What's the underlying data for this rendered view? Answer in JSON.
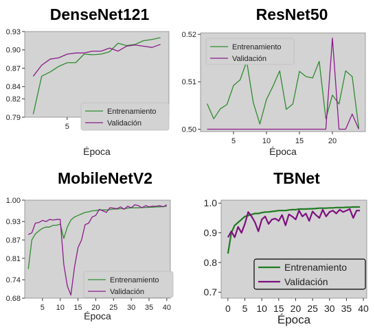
{
  "chart_data": [
    {
      "type": "line",
      "title": "DenseNet121",
      "xlabel": "Época",
      "ylabel": "",
      "xlim": [
        0,
        17
      ],
      "ylim": [
        0.79,
        0.93
      ],
      "xticks": [
        5,
        10,
        15
      ],
      "yticks": [
        0.79,
        0.82,
        0.84,
        0.87,
        0.9,
        0.93
      ],
      "ytick_labels": [
        "0.79",
        "0.82",
        "0.84",
        "0.87",
        "0.90",
        "0.93"
      ],
      "grid": false,
      "legend": "bottom-right",
      "series": [
        {
          "name": "Entrenamiento",
          "color": "#2e8b2e",
          "x": [
            1,
            2,
            3,
            4,
            5,
            6,
            7,
            8,
            9,
            10,
            11,
            12,
            13,
            14,
            15,
            16
          ],
          "y": [
            0.795,
            0.857,
            0.864,
            0.873,
            0.879,
            0.879,
            0.893,
            0.892,
            0.893,
            0.897,
            0.911,
            0.907,
            0.909,
            0.915,
            0.917,
            0.92
          ]
        },
        {
          "name": "Validación",
          "color": "#8b1a8b",
          "x": [
            1,
            2,
            3,
            4,
            5,
            6,
            7,
            8,
            9,
            10,
            11,
            12,
            13,
            14,
            15,
            16
          ],
          "y": [
            0.857,
            0.875,
            0.885,
            0.887,
            0.893,
            0.895,
            0.895,
            0.898,
            0.898,
            0.903,
            0.898,
            0.906,
            0.908,
            0.906,
            0.904,
            0.909
          ]
        }
      ]
    },
    {
      "type": "line",
      "title": "ResNet50",
      "xlabel": "Época",
      "ylabel": "",
      "xlim": [
        0,
        25
      ],
      "ylim": [
        0.4995,
        0.5203
      ],
      "xticks": [
        5,
        10,
        15,
        20
      ],
      "yticks": [
        0.5,
        0.51,
        0.52
      ],
      "ytick_labels": [
        "0.50",
        "0.51",
        "0.52"
      ],
      "grid": false,
      "legend": "top-left",
      "series": [
        {
          "name": "Entrenamiento",
          "color": "#2e8b2e",
          "x": [
            1,
            2,
            3,
            4,
            5,
            6,
            7,
            8,
            9,
            10,
            11,
            12,
            13,
            14,
            15,
            16,
            17,
            18,
            19,
            20,
            21,
            22,
            23,
            24
          ],
          "y": [
            0.5054,
            0.5022,
            0.5043,
            0.5052,
            0.5092,
            0.5104,
            0.5143,
            0.5056,
            0.5011,
            0.5063,
            0.5091,
            0.5123,
            0.5042,
            0.5053,
            0.5122,
            0.5111,
            0.5108,
            0.5143,
            0.5022,
            0.5072,
            0.5053,
            0.5123,
            0.5111,
            0.5002
          ]
        },
        {
          "name": "Validación",
          "color": "#8b1a8b",
          "x": [
            1,
            2,
            3,
            4,
            5,
            6,
            7,
            8,
            9,
            10,
            11,
            12,
            13,
            14,
            15,
            16,
            17,
            18,
            19,
            20,
            21,
            22,
            23,
            24
          ],
          "y": [
            0.5,
            0.5,
            0.5,
            0.5,
            0.5,
            0.5,
            0.5,
            0.5,
            0.5,
            0.5,
            0.5,
            0.5,
            0.5,
            0.5,
            0.5,
            0.5,
            0.5,
            0.5,
            0.5,
            0.5192,
            0.5,
            0.5,
            0.5032,
            0.5
          ]
        }
      ]
    },
    {
      "type": "line",
      "title": "MobileNetV2",
      "xlabel": "Época",
      "ylabel": "",
      "xlim": [
        0,
        41
      ],
      "ylim": [
        0.68,
        1.0
      ],
      "xticks": [
        5,
        10,
        15,
        20,
        25,
        30,
        35,
        40
      ],
      "yticks": [
        0.68,
        0.74,
        0.81,
        0.87,
        0.93,
        1.0
      ],
      "ytick_labels": [
        "0.68",
        "0.74",
        "0.81",
        "0.87",
        "0.93",
        "1.00"
      ],
      "grid": false,
      "legend": "bottom-right",
      "series": [
        {
          "name": "Entrenamiento",
          "color": "#2e8b2e",
          "x": [
            1,
            2,
            3,
            4,
            5,
            6,
            7,
            8,
            9,
            10,
            11,
            12,
            13,
            14,
            15,
            16,
            17,
            18,
            19,
            20,
            21,
            22,
            23,
            24,
            25,
            26,
            27,
            28,
            29,
            30,
            31,
            32,
            33,
            34,
            35,
            36,
            37,
            38,
            39,
            40
          ],
          "y": [
            0.775,
            0.87,
            0.89,
            0.9,
            0.908,
            0.912,
            0.912,
            0.918,
            0.918,
            0.922,
            0.875,
            0.912,
            0.935,
            0.945,
            0.95,
            0.955,
            0.96,
            0.962,
            0.965,
            0.966,
            0.968,
            0.968,
            0.968,
            0.969,
            0.971,
            0.971,
            0.972,
            0.972,
            0.974,
            0.975,
            0.975,
            0.975,
            0.976,
            0.976,
            0.977,
            0.977,
            0.978,
            0.978,
            0.979,
            0.98
          ]
        },
        {
          "name": "Validación",
          "color": "#8b1a8b",
          "x": [
            1,
            2,
            3,
            4,
            5,
            6,
            7,
            8,
            9,
            10,
            11,
            12,
            13,
            14,
            15,
            16,
            17,
            18,
            19,
            20,
            21,
            22,
            23,
            24,
            25,
            26,
            27,
            28,
            29,
            30,
            31,
            32,
            33,
            34,
            35,
            36,
            37,
            38,
            39,
            40
          ],
          "y": [
            0.888,
            0.893,
            0.925,
            0.927,
            0.934,
            0.93,
            0.937,
            0.935,
            0.937,
            0.937,
            0.79,
            0.72,
            0.69,
            0.78,
            0.845,
            0.87,
            0.92,
            0.925,
            0.945,
            0.95,
            0.97,
            0.965,
            0.96,
            0.975,
            0.974,
            0.972,
            0.978,
            0.97,
            0.98,
            0.975,
            0.985,
            0.982,
            0.975,
            0.982,
            0.978,
            0.98,
            0.98,
            0.982,
            0.978,
            0.985
          ]
        }
      ]
    },
    {
      "type": "line",
      "title": "TBNet",
      "xlabel": "Época",
      "ylabel": "",
      "xlim": [
        -2,
        41
      ],
      "ylim": [
        0.68,
        1.01
      ],
      "xticks": [
        0,
        5,
        10,
        15,
        20,
        25,
        30,
        35,
        40
      ],
      "yticks": [
        0.7,
        0.8,
        0.9,
        1.0
      ],
      "ytick_labels": [
        "0.7",
        "0.8",
        "0.9",
        "1.0"
      ],
      "grid": false,
      "legend": "bottom-right",
      "series": [
        {
          "name": "Entrenamiento",
          "color": "#1f7a1f",
          "x": [
            0,
            1,
            2,
            3,
            4,
            5,
            6,
            7,
            8,
            9,
            10,
            11,
            12,
            13,
            14,
            15,
            16,
            17,
            18,
            19,
            20,
            21,
            22,
            23,
            24,
            25,
            26,
            27,
            28,
            29,
            30,
            31,
            32,
            33,
            34,
            35,
            36,
            37,
            38,
            39
          ],
          "y": [
            0.83,
            0.9,
            0.925,
            0.935,
            0.945,
            0.955,
            0.958,
            0.962,
            0.965,
            0.965,
            0.968,
            0.97,
            0.97,
            0.972,
            0.973,
            0.975,
            0.975,
            0.975,
            0.977,
            0.978,
            0.978,
            0.98,
            0.98,
            0.98,
            0.981,
            0.981,
            0.982,
            0.983,
            0.983,
            0.983,
            0.984,
            0.984,
            0.985,
            0.985,
            0.985,
            0.986,
            0.986,
            0.987,
            0.987,
            0.987
          ]
        },
        {
          "name": "Validación",
          "color": "#7d0f7d",
          "x": [
            0,
            1,
            2,
            3,
            4,
            5,
            6,
            7,
            8,
            9,
            10,
            11,
            12,
            13,
            14,
            15,
            16,
            17,
            18,
            19,
            20,
            21,
            22,
            23,
            24,
            25,
            26,
            27,
            28,
            29,
            30,
            31,
            32,
            33,
            34,
            35,
            36,
            37,
            38,
            39
          ],
          "y": [
            0.885,
            0.905,
            0.885,
            0.92,
            0.9,
            0.93,
            0.97,
            0.955,
            0.935,
            0.905,
            0.945,
            0.955,
            0.93,
            0.945,
            0.948,
            0.94,
            0.96,
            0.925,
            0.962,
            0.955,
            0.945,
            0.975,
            0.955,
            0.965,
            0.94,
            0.972,
            0.96,
            0.95,
            0.978,
            0.955,
            0.97,
            0.975,
            0.965,
            0.978,
            0.97,
            0.975,
            0.98,
            0.95,
            0.975,
            0.975
          ]
        }
      ]
    }
  ]
}
